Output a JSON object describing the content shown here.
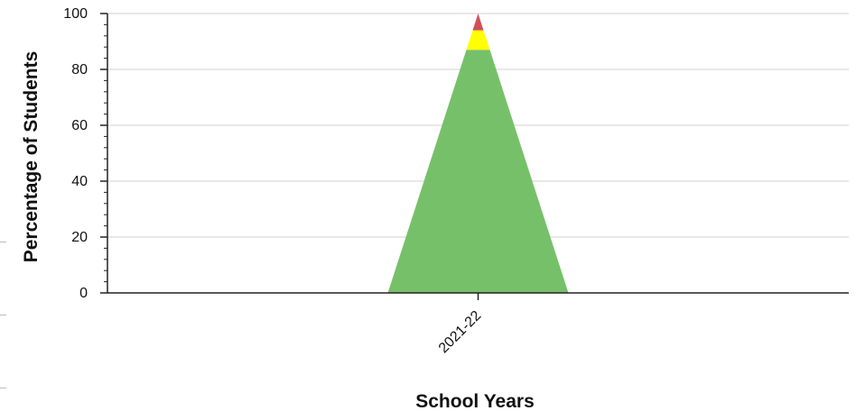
{
  "chart_data": {
    "type": "area",
    "title": "",
    "xlabel": "School Years",
    "ylabel": "Percentage of Students",
    "categories": [
      "2021-22"
    ],
    "ylim": [
      0,
      100
    ],
    "yticks": [
      "0",
      "20",
      "40",
      "60",
      "80",
      "100"
    ],
    "grid": true,
    "legend": "none",
    "stacked": true,
    "series": [
      {
        "values": [
          87
        ],
        "color": "#77c06a"
      },
      {
        "values": [
          7
        ],
        "color": "#ffff00"
      },
      {
        "values": [
          6
        ],
        "color": "#d04f5a"
      }
    ]
  }
}
